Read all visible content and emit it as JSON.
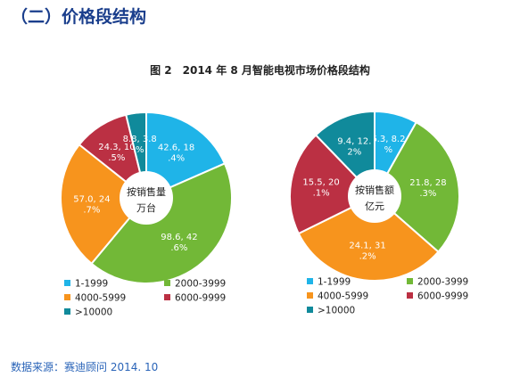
{
  "page": {
    "section_title": "（二）价格段结构",
    "caption": "图 2　2014 年 8 月智能电视市场价格段结构",
    "source": "数据来源：赛迪顾问 2014. 10"
  },
  "colors": {
    "1-1999": "#1fb4e8",
    "2000-3999": "#72b837",
    "4000-5999": "#f7941d",
    "6000-9999": "#bb3043",
    ">10000": "#108a9b"
  },
  "chart_data": [
    {
      "type": "pie",
      "subtype": "donut",
      "center_label": [
        "按销售量",
        "万台"
      ],
      "categories": [
        "1-1999",
        "2000-3999",
        "4000-5999",
        "6000-9999",
        ">10000"
      ],
      "values": [
        42.6,
        98.6,
        57.0,
        24.3,
        8.8
      ],
      "percents": [
        18.4,
        42.6,
        24.7,
        10.5,
        3.8
      ],
      "data_labels": [
        [
          "42.6, 18",
          ".4%"
        ],
        [
          "98.6, 42",
          ".6%"
        ],
        [
          "57.0, 24",
          ".7%"
        ],
        [
          "24.3, 10",
          ".5%"
        ],
        [
          "8.8, 3.8",
          "%"
        ]
      ],
      "legend_position": "bottom"
    },
    {
      "type": "pie",
      "subtype": "donut",
      "center_label": [
        "按销售额",
        "亿元"
      ],
      "categories": [
        "1-1999",
        "2000-3999",
        "4000-5999",
        "6000-9999",
        ">10000"
      ],
      "values": [
        6.3,
        21.8,
        24.1,
        15.5,
        9.4
      ],
      "percents": [
        8.2,
        28.3,
        31.2,
        20.1,
        12.2
      ],
      "data_labels": [
        [
          "6.3, 8.2",
          "%"
        ],
        [
          "21.8, 28",
          ".3%"
        ],
        [
          "24.1, 31",
          ".2%"
        ],
        [
          "15.5, 20",
          ".1%"
        ],
        [
          "9.4, 12.",
          "2%"
        ]
      ],
      "legend_position": "bottom"
    }
  ]
}
